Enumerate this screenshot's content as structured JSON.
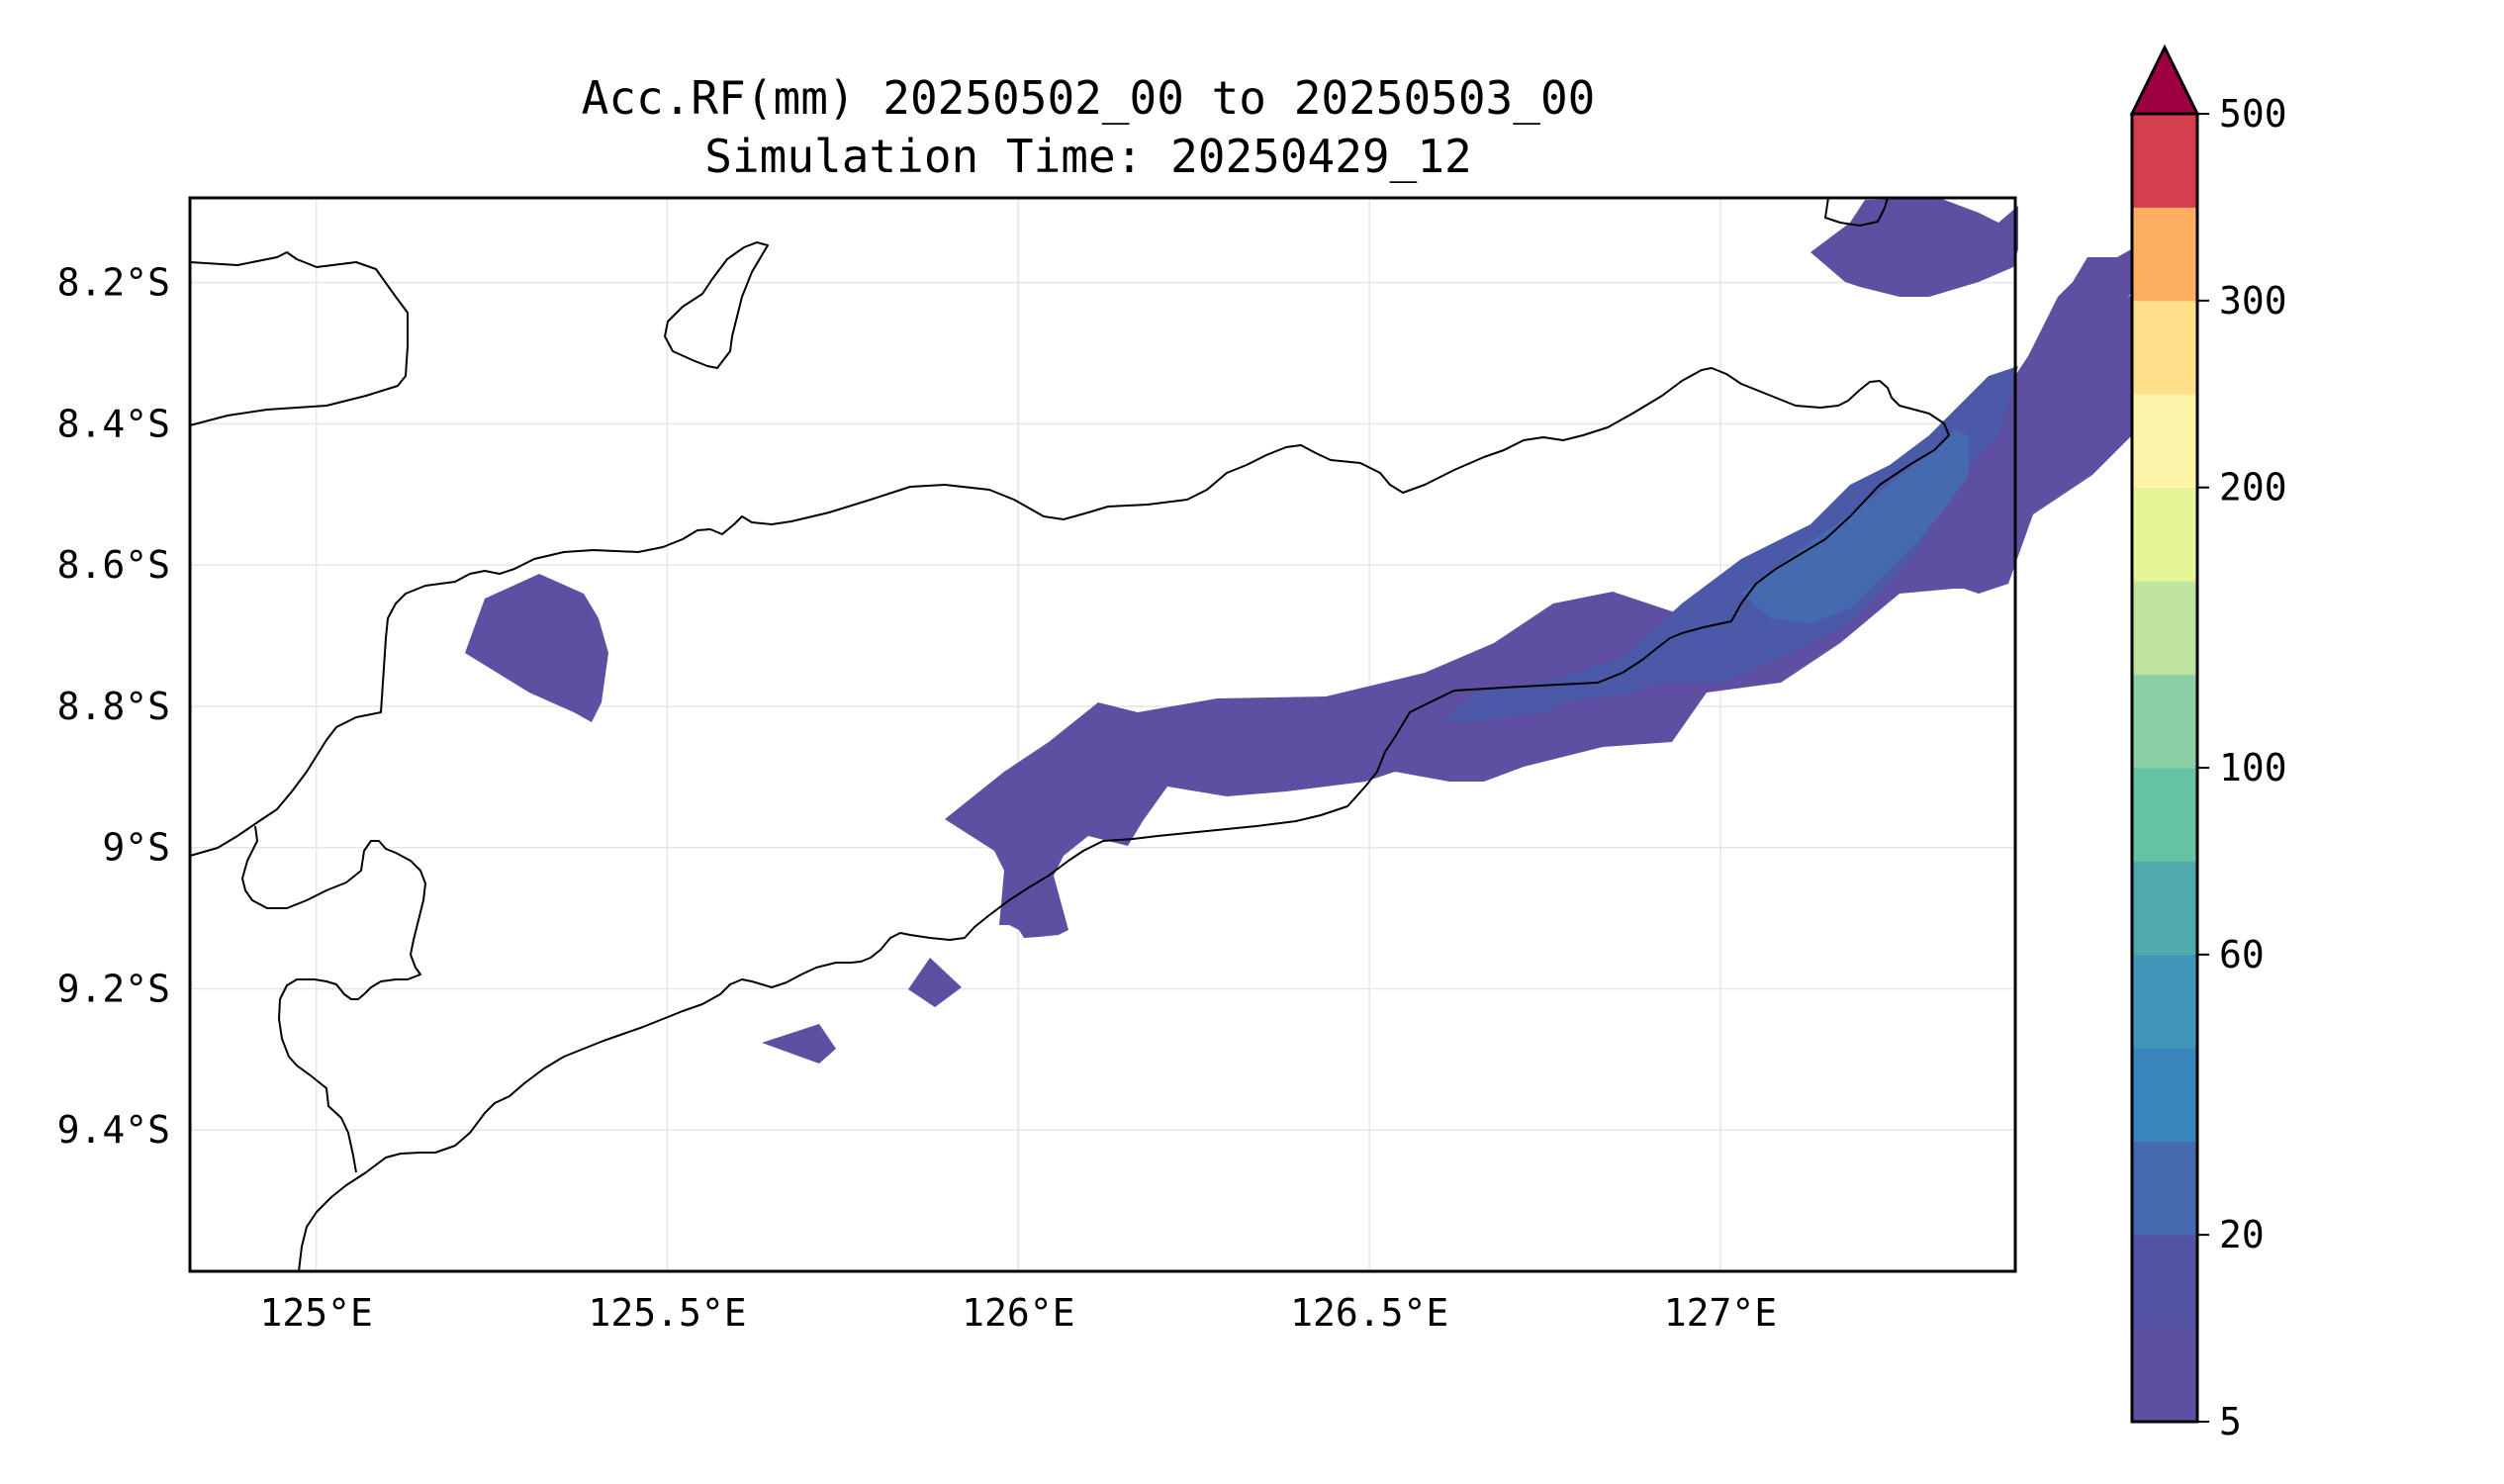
{
  "title": {
    "line1": "Acc.RF(mm) 20250502_00 to 20250503_00",
    "line2": "Simulation Time: 20250429_12"
  },
  "map": {
    "lon_range": [
      124.82,
      127.42
    ],
    "lat_range": [
      -9.6,
      -8.08
    ],
    "x_ticks": [
      {
        "value": 125.0,
        "label": "125°E"
      },
      {
        "value": 125.5,
        "label": "125.5°E"
      },
      {
        "value": 126.0,
        "label": "126°E"
      },
      {
        "value": 126.5,
        "label": "126.5°E"
      },
      {
        "value": 127.0,
        "label": "127°E"
      }
    ],
    "y_ticks": [
      {
        "value": -8.2,
        "label": "8.2°S"
      },
      {
        "value": -8.4,
        "label": "8.4°S"
      },
      {
        "value": -8.6,
        "label": "8.6°S"
      },
      {
        "value": -8.8,
        "label": "8.8°S"
      },
      {
        "value": -9.0,
        "label": "9°S"
      },
      {
        "value": -9.2,
        "label": "9.2°S"
      },
      {
        "value": -9.4,
        "label": "9.4°S"
      }
    ],
    "grid": true
  },
  "colorbar": {
    "levels": [
      5,
      10,
      20,
      40,
      50,
      60,
      70,
      100,
      120,
      150,
      200,
      250,
      300,
      400,
      500
    ],
    "colors": [
      "#5e4fa2",
      "#5452a3",
      "#466ab0",
      "#3a85bc",
      "#3f96b7",
      "#4fa9ad",
      "#66c2a5",
      "#89cfa5",
      "#bee5a0",
      "#e6f598",
      "#fbf4a9",
      "#fee08b",
      "#fdae61",
      "#d53e4f"
    ],
    "extend_color": "#9e0142",
    "tick_labels": [
      {
        "value": 5,
        "label": "5"
      },
      {
        "value": 20,
        "label": "20"
      },
      {
        "value": 60,
        "label": "60"
      },
      {
        "value": 100,
        "label": "100"
      },
      {
        "value": 200,
        "label": "200"
      },
      {
        "value": 300,
        "label": "300"
      },
      {
        "value": 500,
        "label": "500"
      }
    ]
  }
}
